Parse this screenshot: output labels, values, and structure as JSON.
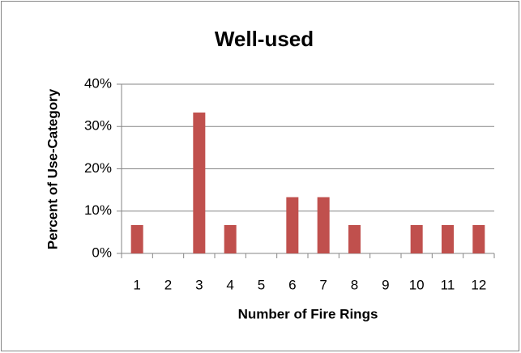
{
  "chart_data": {
    "type": "bar",
    "title": "Well-used",
    "x_label": "Number of Fire Rings",
    "y_label": "Percent of Use-Category",
    "categories": [
      "1",
      "2",
      "3",
      "4",
      "5",
      "6",
      "7",
      "8",
      "9",
      "10",
      "11",
      "12"
    ],
    "values": [
      6.7,
      0,
      33.3,
      6.7,
      0,
      13.3,
      13.3,
      6.7,
      0,
      6.7,
      6.7,
      6.7
    ],
    "color": "#c0504d",
    "ylim": [
      0,
      40
    ],
    "yticks": [
      {
        "value": 0,
        "label": "0%"
      },
      {
        "value": 10,
        "label": "10%"
      },
      {
        "value": 20,
        "label": "20%"
      },
      {
        "value": 30,
        "label": "30%"
      },
      {
        "value": 40,
        "label": "40%"
      }
    ],
    "grid": true
  }
}
